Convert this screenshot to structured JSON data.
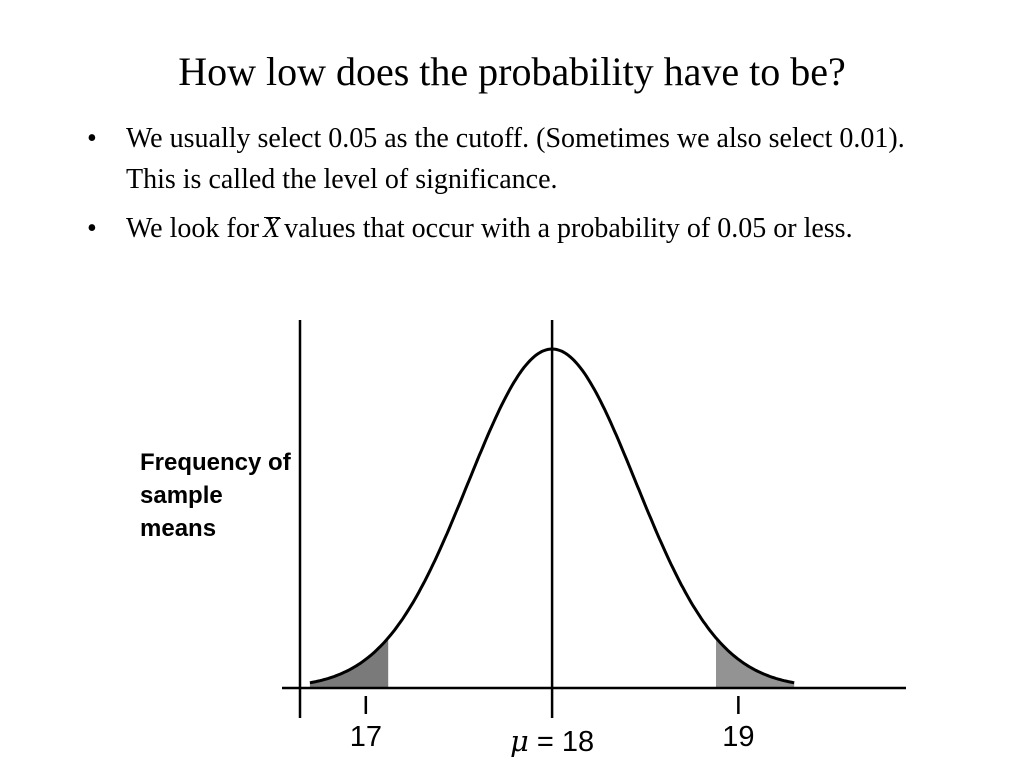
{
  "slide": {
    "title": "How low does the probability have to be?",
    "bullets": [
      {
        "marker": "•",
        "text": "We usually select 0.05 as the cutoff. (Sometimes we also select 0.01). This is called the level of significance."
      },
      {
        "marker": "•",
        "before": "We look for",
        "symbol": "X",
        "after": "values that occur with a probability of 0.05 or less."
      }
    ]
  },
  "chart_data": {
    "type": "area",
    "distribution": "normal",
    "mean": 18,
    "sd": 0.45,
    "xlim": [
      16.55,
      19.9
    ],
    "xticks": [
      {
        "value": 17,
        "label": "17"
      },
      {
        "value": 19,
        "label": "19"
      }
    ],
    "mean_label": {
      "symbol": "μ",
      "text": " = 18"
    },
    "ylabel": "Frequency of sample means",
    "shaded_regions": [
      {
        "from": 16.7,
        "to": 17.12,
        "color": "#7a7a7a"
      },
      {
        "from": 18.88,
        "to": 19.3,
        "color": "#939393"
      }
    ],
    "curve_range": [
      16.7,
      19.3
    ],
    "grid": false
  }
}
